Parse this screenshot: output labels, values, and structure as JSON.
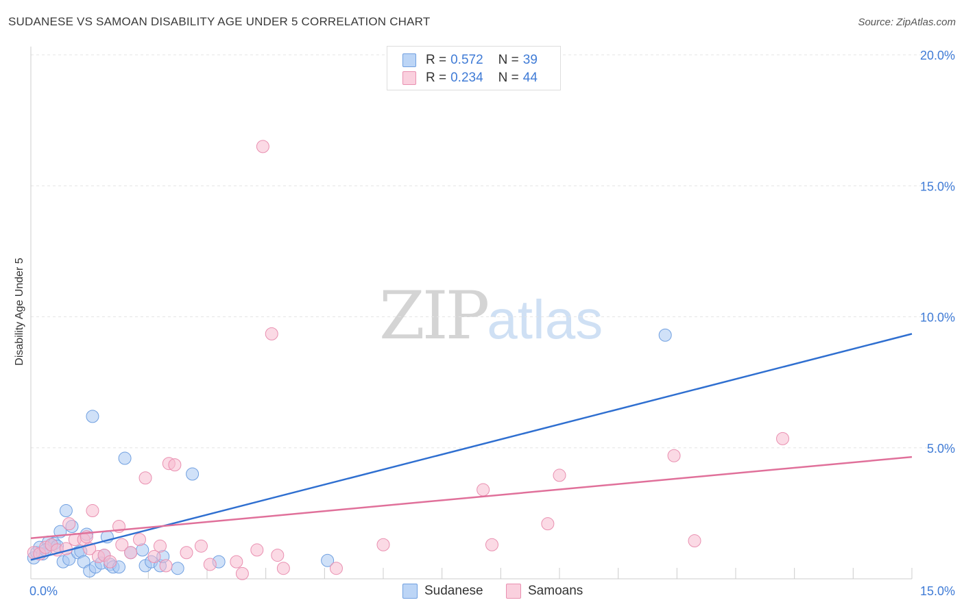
{
  "title": "SUDANESE VS SAMOAN DISABILITY AGE UNDER 5 CORRELATION CHART",
  "source": "Source: ZipAtlas.com",
  "watermark": {
    "zip": "ZIP",
    "atlas": "atlas"
  },
  "legend": {
    "r_label": "R =",
    "n_label": "N =",
    "rows": [
      {
        "r": "0.572",
        "n": "39"
      },
      {
        "r": "0.234",
        "n": "44"
      }
    ]
  },
  "colors": {
    "sudanese_fill": "#a9c8f2",
    "sudanese_stroke": "#6f9fe0",
    "sudanese_line": "#2f6fd0",
    "samoans_fill": "#f7bcd0",
    "samoans_stroke": "#e98fb0",
    "samoans_line": "#e0709a",
    "tick_text": "#3f7bd6",
    "grid": "#e4e4e4"
  },
  "chart_data": {
    "type": "scatter",
    "title": "SUDANESE VS SAMOAN DISABILITY AGE UNDER 5 CORRELATION CHART",
    "xlabel": "",
    "ylabel": "Disability Age Under 5",
    "xlim": [
      0,
      15
    ],
    "ylim": [
      0,
      20
    ],
    "y_ticks": [
      {
        "value": 5,
        "label": "5.0%"
      },
      {
        "value": 10,
        "label": "10.0%"
      },
      {
        "value": 15,
        "label": "15.0%"
      },
      {
        "value": 20,
        "label": "20.0%"
      }
    ],
    "x_tick_labels": [
      {
        "value": 0,
        "label": "0.0%"
      },
      {
        "value": 15,
        "label": "15.0%"
      }
    ],
    "grid": true,
    "legend_position": "top-center",
    "series": [
      {
        "name": "Sudanese",
        "r": 0.572,
        "n": 39,
        "trend": {
          "x": [
            0,
            15
          ],
          "y": [
            0.72,
            9.35
          ]
        },
        "points": [
          [
            0.05,
            0.8
          ],
          [
            0.1,
            1.0
          ],
          [
            0.15,
            1.2
          ],
          [
            0.2,
            0.95
          ],
          [
            0.3,
            1.4
          ],
          [
            0.35,
            1.3
          ],
          [
            0.4,
            1.35
          ],
          [
            0.5,
            1.8
          ],
          [
            0.55,
            0.65
          ],
          [
            0.6,
            2.6
          ],
          [
            0.65,
            0.75
          ],
          [
            0.7,
            2.0
          ],
          [
            0.8,
            1.0
          ],
          [
            0.85,
            1.05
          ],
          [
            0.9,
            0.65
          ],
          [
            0.95,
            1.7
          ],
          [
            1.0,
            0.3
          ],
          [
            1.05,
            6.2
          ],
          [
            1.1,
            0.45
          ],
          [
            1.2,
            0.6
          ],
          [
            1.25,
            0.9
          ],
          [
            1.3,
            1.6
          ],
          [
            1.35,
            0.55
          ],
          [
            1.4,
            0.45
          ],
          [
            1.5,
            0.45
          ],
          [
            1.6,
            4.6
          ],
          [
            1.7,
            1.0
          ],
          [
            1.9,
            1.1
          ],
          [
            1.95,
            0.5
          ],
          [
            2.05,
            0.65
          ],
          [
            2.2,
            0.5
          ],
          [
            2.25,
            0.85
          ],
          [
            2.5,
            0.4
          ],
          [
            2.75,
            4.0
          ],
          [
            3.2,
            0.65
          ],
          [
            5.05,
            0.7
          ],
          [
            10.8,
            9.3
          ],
          [
            0.25,
            1.1
          ],
          [
            0.45,
            1.25
          ]
        ]
      },
      {
        "name": "Samoans",
        "r": 0.234,
        "n": 44,
        "trend": {
          "x": [
            0,
            15
          ],
          "y": [
            1.55,
            4.65
          ]
        },
        "points": [
          [
            0.05,
            1.0
          ],
          [
            0.15,
            0.95
          ],
          [
            0.25,
            1.2
          ],
          [
            0.35,
            1.3
          ],
          [
            0.45,
            1.1
          ],
          [
            0.6,
            1.15
          ],
          [
            0.65,
            2.1
          ],
          [
            0.75,
            1.5
          ],
          [
            0.9,
            1.5
          ],
          [
            0.95,
            1.6
          ],
          [
            1.0,
            1.15
          ],
          [
            1.05,
            2.6
          ],
          [
            1.15,
            0.85
          ],
          [
            1.25,
            0.9
          ],
          [
            1.35,
            0.65
          ],
          [
            1.5,
            2.0
          ],
          [
            1.55,
            1.3
          ],
          [
            1.7,
            1.0
          ],
          [
            1.85,
            1.5
          ],
          [
            1.95,
            3.85
          ],
          [
            2.1,
            0.85
          ],
          [
            2.2,
            1.25
          ],
          [
            2.3,
            0.5
          ],
          [
            2.35,
            4.4
          ],
          [
            2.45,
            4.35
          ],
          [
            2.65,
            1.0
          ],
          [
            2.9,
            1.25
          ],
          [
            3.05,
            0.55
          ],
          [
            3.5,
            0.65
          ],
          [
            3.6,
            0.2
          ],
          [
            3.85,
            1.1
          ],
          [
            3.95,
            16.5
          ],
          [
            4.1,
            9.35
          ],
          [
            4.2,
            0.9
          ],
          [
            4.3,
            0.4
          ],
          [
            5.2,
            0.4
          ],
          [
            6.0,
            1.3
          ],
          [
            7.7,
            3.4
          ],
          [
            7.85,
            1.3
          ],
          [
            8.8,
            2.1
          ],
          [
            9.0,
            3.95
          ],
          [
            10.95,
            4.7
          ],
          [
            11.3,
            1.45
          ],
          [
            12.8,
            5.35
          ]
        ]
      }
    ]
  }
}
